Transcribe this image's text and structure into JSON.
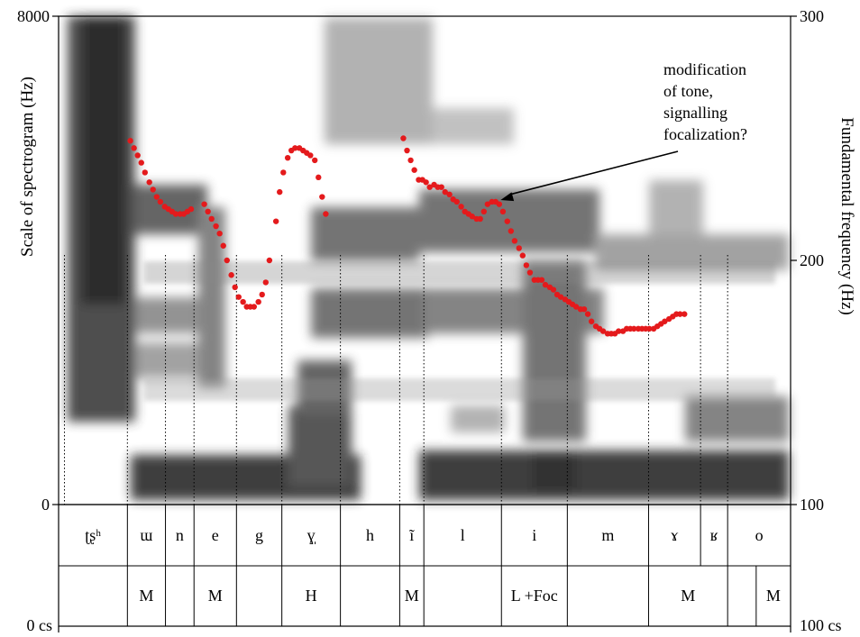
{
  "chart_data": {
    "type": "line",
    "left_axis": {
      "label": "Scale of spectrogram (Hz)",
      "min": 0,
      "max": 8000,
      "ticks": [
        "8000",
        "0"
      ]
    },
    "right_axis": {
      "label": "Fundamental frequency (Hz)",
      "min": 100,
      "max": 300,
      "ticks": [
        "300",
        "200",
        "100"
      ]
    },
    "time_axis": {
      "unit": "cs",
      "start_label": "0 cs",
      "end_label": "100 cs",
      "min": 0,
      "max": 100
    },
    "series": [
      {
        "color": "#e41a1c",
        "points": [
          [
            9.8,
            249
          ],
          [
            10.3,
            246
          ],
          [
            10.8,
            243
          ],
          [
            11.3,
            240
          ],
          [
            11.8,
            236
          ],
          [
            12.4,
            232
          ],
          [
            12.9,
            229
          ],
          [
            13.4,
            226
          ],
          [
            13.9,
            224
          ],
          [
            14.5,
            222
          ],
          [
            15.0,
            221
          ],
          [
            15.5,
            220
          ],
          [
            16.0,
            219
          ],
          [
            16.6,
            219
          ],
          [
            17.1,
            219
          ],
          [
            17.6,
            220
          ],
          [
            18.1,
            221
          ],
          [
            19.9,
            223
          ],
          [
            20.4,
            220
          ],
          [
            20.9,
            217
          ],
          [
            21.5,
            214
          ],
          [
            22.0,
            211
          ],
          [
            22.5,
            206
          ],
          [
            23.0,
            200
          ],
          [
            23.6,
            194
          ],
          [
            24.1,
            189
          ],
          [
            24.6,
            185
          ],
          [
            25.2,
            183
          ],
          [
            25.7,
            181
          ],
          [
            26.2,
            181
          ],
          [
            26.7,
            181
          ],
          [
            27.3,
            183
          ],
          [
            27.8,
            186
          ],
          [
            28.3,
            191
          ],
          [
            28.8,
            200
          ],
          [
            29.7,
            216
          ],
          [
            30.2,
            228
          ],
          [
            30.7,
            236
          ],
          [
            31.3,
            242
          ],
          [
            31.8,
            245
          ],
          [
            32.3,
            246
          ],
          [
            32.9,
            246
          ],
          [
            33.4,
            245
          ],
          [
            33.9,
            244
          ],
          [
            34.4,
            243
          ],
          [
            35.0,
            241
          ],
          [
            35.5,
            234
          ],
          [
            36.0,
            226
          ],
          [
            36.5,
            219
          ],
          [
            47.1,
            250
          ],
          [
            47.6,
            245
          ],
          [
            48.1,
            241
          ],
          [
            48.6,
            237
          ],
          [
            49.2,
            233
          ],
          [
            49.7,
            233
          ],
          [
            50.2,
            232
          ],
          [
            50.7,
            230
          ],
          [
            51.3,
            231
          ],
          [
            51.8,
            230
          ],
          [
            52.3,
            230
          ],
          [
            52.8,
            228
          ],
          [
            53.4,
            227
          ],
          [
            53.9,
            225
          ],
          [
            54.4,
            224
          ],
          [
            55.0,
            222
          ],
          [
            55.5,
            220
          ],
          [
            56.0,
            219
          ],
          [
            56.5,
            218
          ],
          [
            57.1,
            217
          ],
          [
            57.6,
            217
          ],
          [
            58.1,
            220
          ],
          [
            58.6,
            223
          ],
          [
            59.2,
            224
          ],
          [
            59.7,
            224
          ],
          [
            60.2,
            223
          ],
          [
            60.7,
            220
          ],
          [
            61.3,
            216
          ],
          [
            61.8,
            212
          ],
          [
            62.3,
            208
          ],
          [
            62.9,
            205
          ],
          [
            63.4,
            202
          ],
          [
            63.9,
            198
          ],
          [
            64.4,
            195
          ],
          [
            65.0,
            192
          ],
          [
            65.5,
            192
          ],
          [
            66.0,
            192
          ],
          [
            66.5,
            190
          ],
          [
            67.1,
            189
          ],
          [
            67.6,
            188
          ],
          [
            68.1,
            186
          ],
          [
            68.6,
            185
          ],
          [
            69.2,
            184
          ],
          [
            69.7,
            183
          ],
          [
            70.2,
            182
          ],
          [
            70.7,
            181
          ],
          [
            71.3,
            180
          ],
          [
            71.8,
            180
          ],
          [
            72.3,
            178
          ],
          [
            72.8,
            175
          ],
          [
            73.4,
            173
          ],
          [
            73.9,
            172
          ],
          [
            74.4,
            171
          ],
          [
            75.0,
            170
          ],
          [
            75.5,
            170
          ],
          [
            76.0,
            170
          ],
          [
            76.5,
            171
          ],
          [
            77.1,
            171
          ],
          [
            77.6,
            172
          ],
          [
            78.1,
            172
          ],
          [
            78.6,
            172
          ],
          [
            79.2,
            172
          ],
          [
            79.7,
            172
          ],
          [
            80.2,
            172
          ],
          [
            80.7,
            172
          ],
          [
            81.3,
            172
          ],
          [
            81.8,
            173
          ],
          [
            82.3,
            174
          ],
          [
            82.8,
            175
          ],
          [
            83.4,
            176
          ],
          [
            83.9,
            177
          ],
          [
            84.4,
            178
          ],
          [
            84.9,
            178
          ],
          [
            85.5,
            178
          ]
        ]
      }
    ],
    "segments": [
      {
        "label": "ʈʂʰ",
        "start": 0.0,
        "end": 9.4
      },
      {
        "label": "ɯ",
        "start": 9.4,
        "end": 14.6
      },
      {
        "label": "n",
        "start": 14.6,
        "end": 18.5
      },
      {
        "label": "e",
        "start": 18.5,
        "end": 24.3
      },
      {
        "label": "g",
        "start": 24.3,
        "end": 30.5
      },
      {
        "label": "ɣ̩",
        "start": 30.5,
        "end": 38.5
      },
      {
        "label": "h",
        "start": 38.5,
        "end": 46.6
      },
      {
        "label": "ĩ",
        "start": 46.6,
        "end": 49.9
      },
      {
        "label": "l",
        "start": 49.9,
        "end": 60.5
      },
      {
        "label": "i",
        "start": 60.5,
        "end": 69.5
      },
      {
        "label": "m",
        "start": 69.5,
        "end": 80.6
      },
      {
        "label": "ɤ",
        "start": 80.6,
        "end": 87.7
      },
      {
        "label": "ʁ",
        "start": 87.7,
        "end": 91.4
      },
      {
        "label": "o",
        "start": 91.4,
        "end": 100.0
      }
    ],
    "tones": [
      {
        "label": "",
        "start": 0.0,
        "end": 9.4
      },
      {
        "label": "M",
        "start": 9.4,
        "end": 14.6
      },
      {
        "label": "",
        "start": 14.6,
        "end": 18.5
      },
      {
        "label": "M",
        "start": 18.5,
        "end": 24.3
      },
      {
        "label": "",
        "start": 24.3,
        "end": 30.5
      },
      {
        "label": "H",
        "start": 30.5,
        "end": 38.5
      },
      {
        "label": "",
        "start": 38.5,
        "end": 46.6
      },
      {
        "label": "M",
        "start": 46.6,
        "end": 49.9
      },
      {
        "label": "",
        "start": 49.9,
        "end": 60.5
      },
      {
        "label": "L +Foc",
        "start": 60.5,
        "end": 69.5
      },
      {
        "label": "",
        "start": 69.5,
        "end": 80.6
      },
      {
        "label": "M",
        "start": 80.6,
        "end": 91.4
      },
      {
        "label": "",
        "start": 91.4,
        "end": 95.3
      },
      {
        "label": "M",
        "start": 95.3,
        "end": 100.0
      }
    ],
    "annotation": {
      "lines": [
        "modification",
        "of tone,",
        "signalling",
        "focalization?"
      ],
      "target": [
        59.4,
        224
      ]
    }
  }
}
